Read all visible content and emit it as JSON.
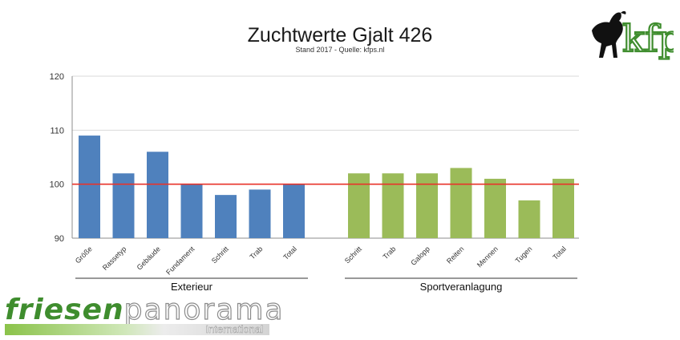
{
  "header": {
    "title": "Zuchtwerte Gjalt 426",
    "subtitle": "Stand 2017 - Quelle: kfps.nl"
  },
  "logo": {
    "name": "kfp-horse-logo",
    "text": "kfp"
  },
  "branding": {
    "main_bold": "friesen",
    "main_light": "panorama",
    "sub": "International"
  },
  "colors": {
    "exterieur": "#4f81bd",
    "sport": "#9bbb59",
    "reference": "#e8332a",
    "grid": "#d9d9d9",
    "brand_green": "#3f8d2e"
  },
  "chart_data": {
    "type": "bar",
    "title": "Zuchtwerte Gjalt 426",
    "subtitle": "Stand 2017 - Quelle: kfps.nl",
    "ylim": [
      90,
      120
    ],
    "yticks": [
      90,
      100,
      110,
      120
    ],
    "reference_line": 100,
    "grid": true,
    "groups": [
      {
        "name": "Exterieur",
        "color": "#4f81bd",
        "categories": [
          "Größe",
          "Rassetyp",
          "Gebäude",
          "Fundament",
          "Schritt",
          "Trab",
          "Total"
        ],
        "values": [
          109,
          102,
          106,
          100,
          98,
          99,
          100
        ]
      },
      {
        "name": "Sportveranlagung",
        "color": "#9bbb59",
        "categories": [
          "Schritt",
          "Trab",
          "Galopp",
          "Reiten",
          "Mennen",
          "Tugen",
          "Total"
        ],
        "values": [
          102,
          102,
          102,
          103,
          101,
          97,
          101
        ]
      }
    ]
  }
}
